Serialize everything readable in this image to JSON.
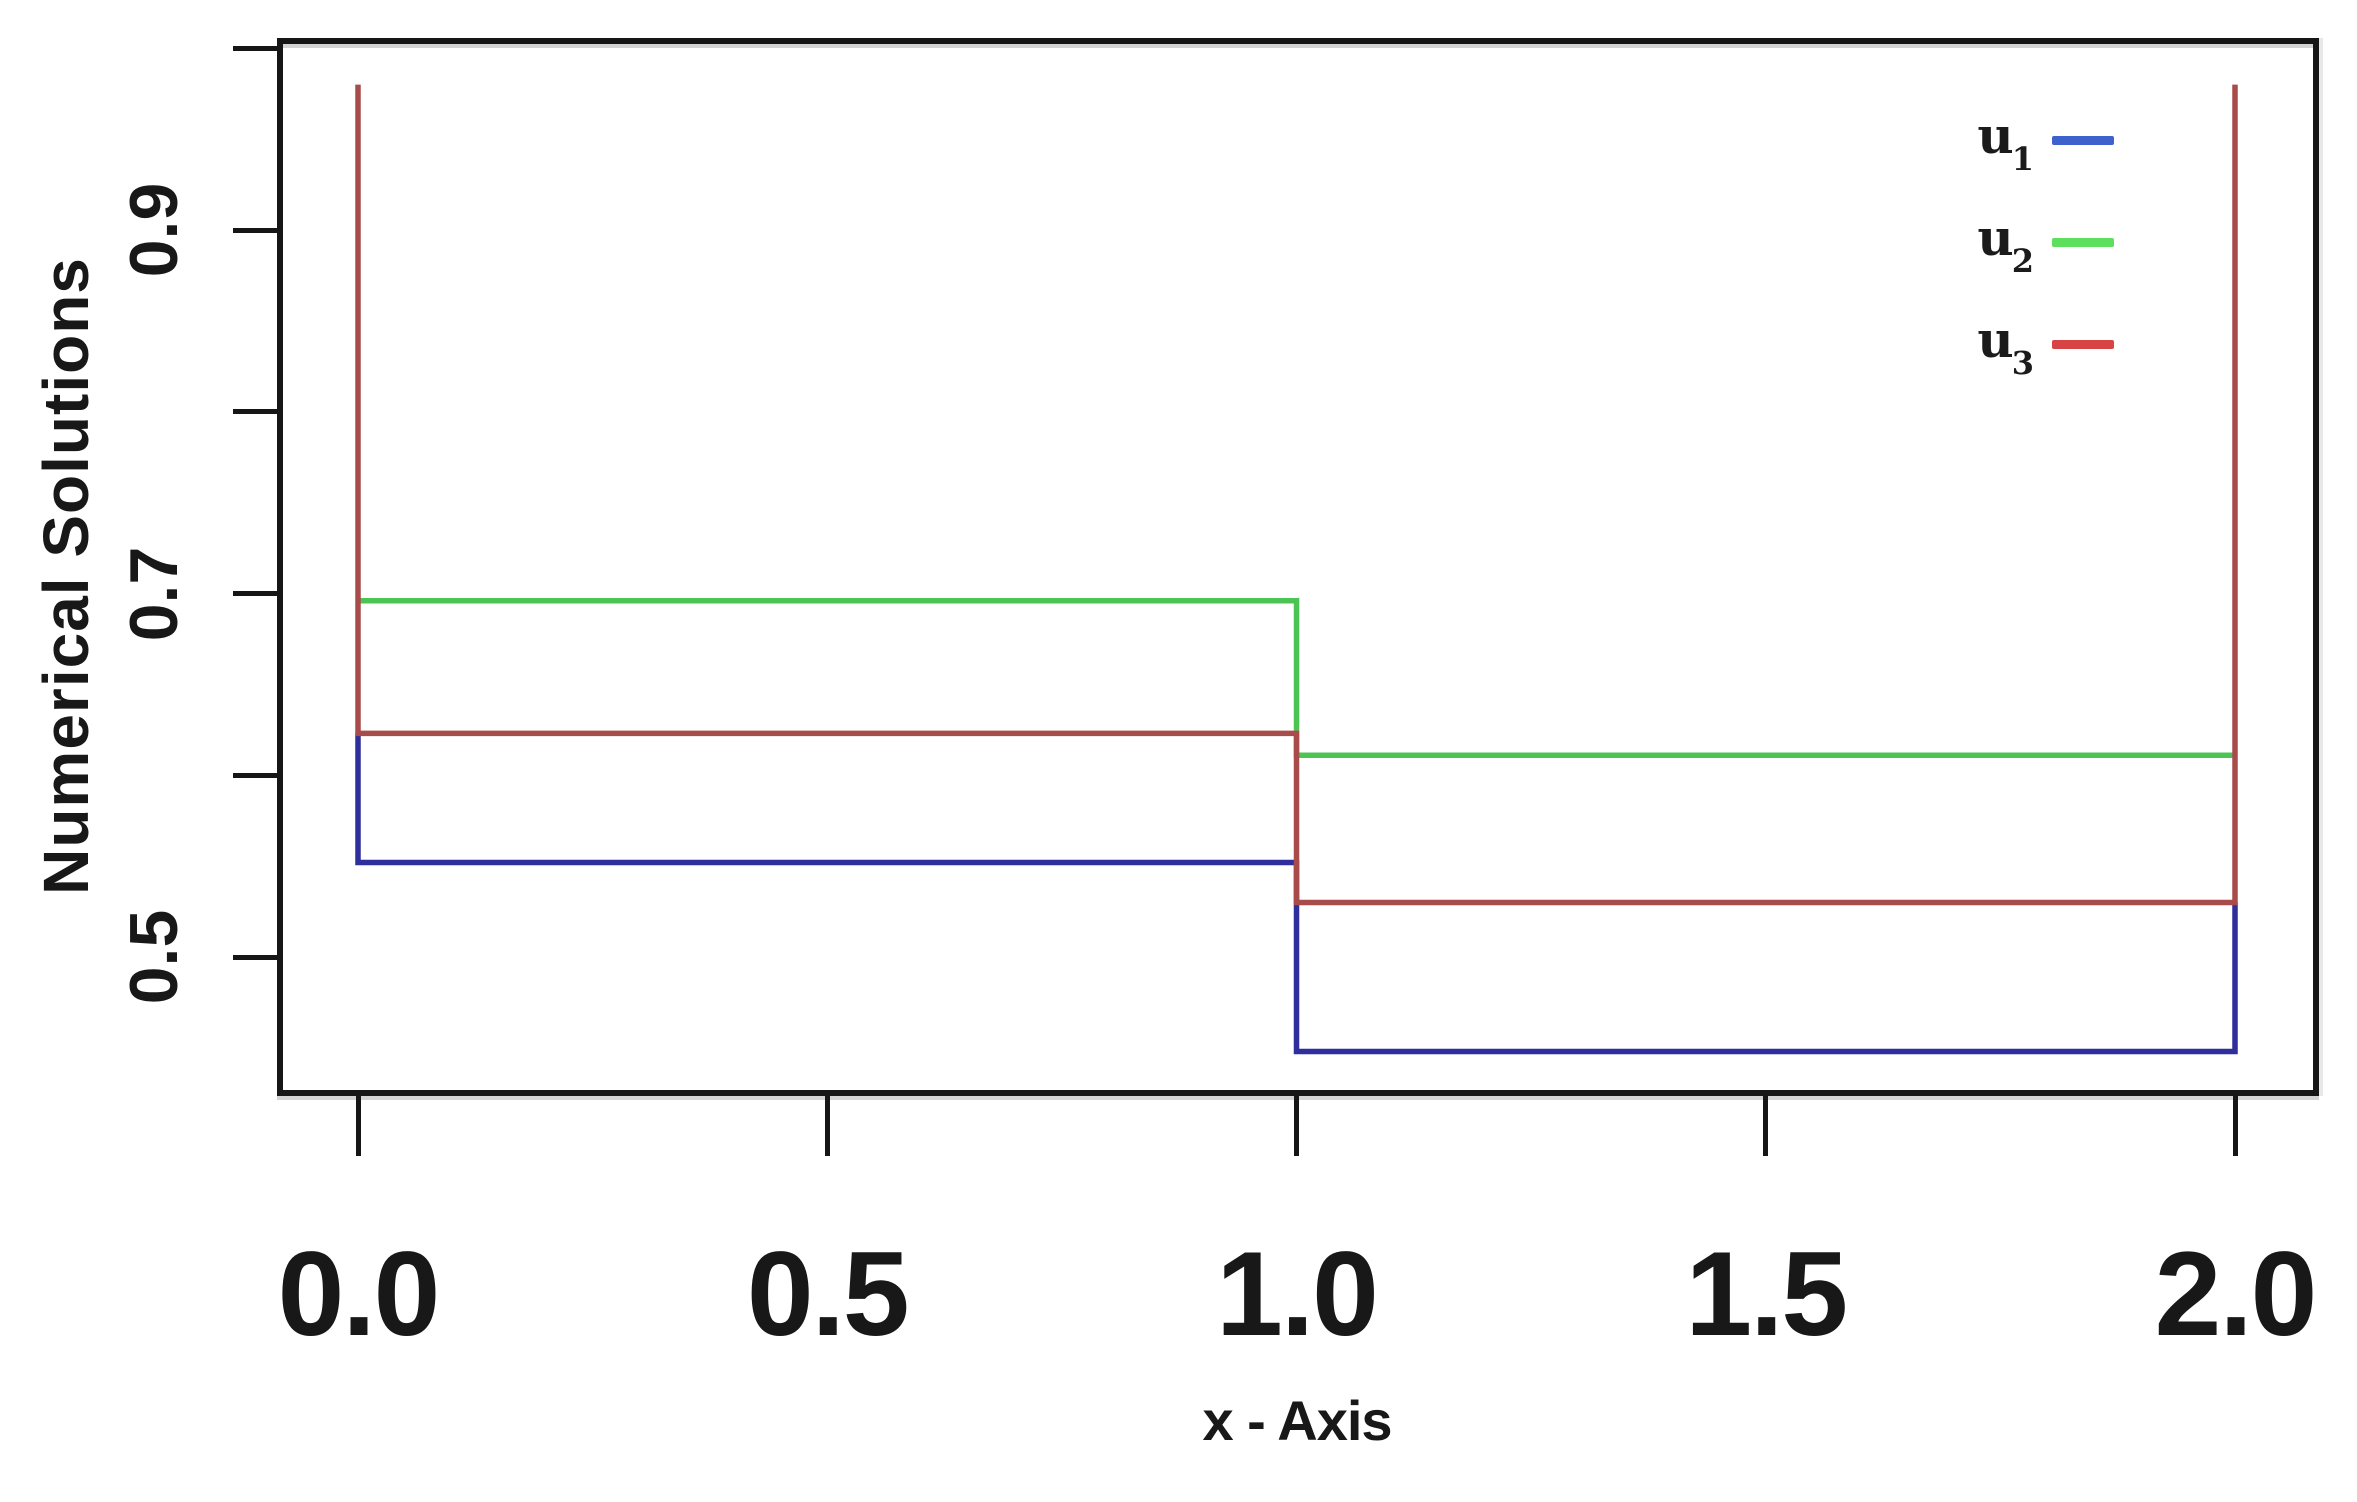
{
  "figure": {
    "background": "#ffffff",
    "frame_color": "#161616"
  },
  "axes": {
    "y_label": "Numerical Solutions",
    "x_label": "x - Axis"
  },
  "legend": {
    "position": "inside-top-right",
    "items": [
      {
        "label": "u",
        "sub": "1",
        "color": "#3e62cc"
      },
      {
        "label": "u",
        "sub": "2",
        "color": "#5cdf5c"
      },
      {
        "label": "u",
        "sub": "3",
        "color": "#d84444"
      }
    ]
  },
  "chart_data": {
    "type": "line",
    "title": "",
    "xlabel": "x - Axis",
    "ylabel": "Numerical Solutions",
    "xlim": [
      -0.08,
      2.08
    ],
    "ylim": [
      0.43,
      1.0
    ],
    "grid": false,
    "legend_position": "top-right",
    "x_ticks": [
      {
        "value": 0.0,
        "label": "0.0"
      },
      {
        "value": 0.5,
        "label": "0.5"
      },
      {
        "value": 1.0,
        "label": "1.0"
      },
      {
        "value": 1.5,
        "label": "1.5"
      },
      {
        "value": 2.0,
        "label": "2.0"
      }
    ],
    "y_ticks": [
      {
        "value": 1.0,
        "label": ""
      },
      {
        "value": 0.9,
        "label": "0.9"
      },
      {
        "value": 0.8,
        "label": ""
      },
      {
        "value": 0.7,
        "label": "0.7"
      },
      {
        "value": 0.6,
        "label": ""
      },
      {
        "value": 0.5,
        "label": "0.5"
      }
    ],
    "series": [
      {
        "name": "u1",
        "line_color": "#2e2e9c",
        "legend_color": "#3e62cc",
        "points": [
          [
            0,
            0.623
          ],
          [
            0,
            0.552
          ],
          [
            1,
            0.552
          ],
          [
            1,
            0.448
          ],
          [
            2,
            0.448
          ],
          [
            2,
            0.53
          ]
        ]
      },
      {
        "name": "u2",
        "line_color": "#4cc453",
        "legend_color": "#5cdf5c",
        "points": [
          [
            0,
            0.696
          ],
          [
            1,
            0.696
          ],
          [
            1,
            0.611
          ],
          [
            2,
            0.611
          ]
        ]
      },
      {
        "name": "u3",
        "line_color": "#a84b4b",
        "legend_color": "#d84444",
        "points": [
          [
            0,
            0.98
          ],
          [
            0,
            0.623
          ],
          [
            1,
            0.623
          ],
          [
            1,
            0.53
          ],
          [
            2,
            0.53
          ],
          [
            2,
            0.98
          ]
        ]
      }
    ],
    "description": "Piecewise-constant numerical solutions u1 (blue), u2 (green), u3 (red) on x in [0,2], each with one downward jump at x=1; u3 has tall boundary spikes at x=0 and x=2 reaching ~0.98."
  }
}
